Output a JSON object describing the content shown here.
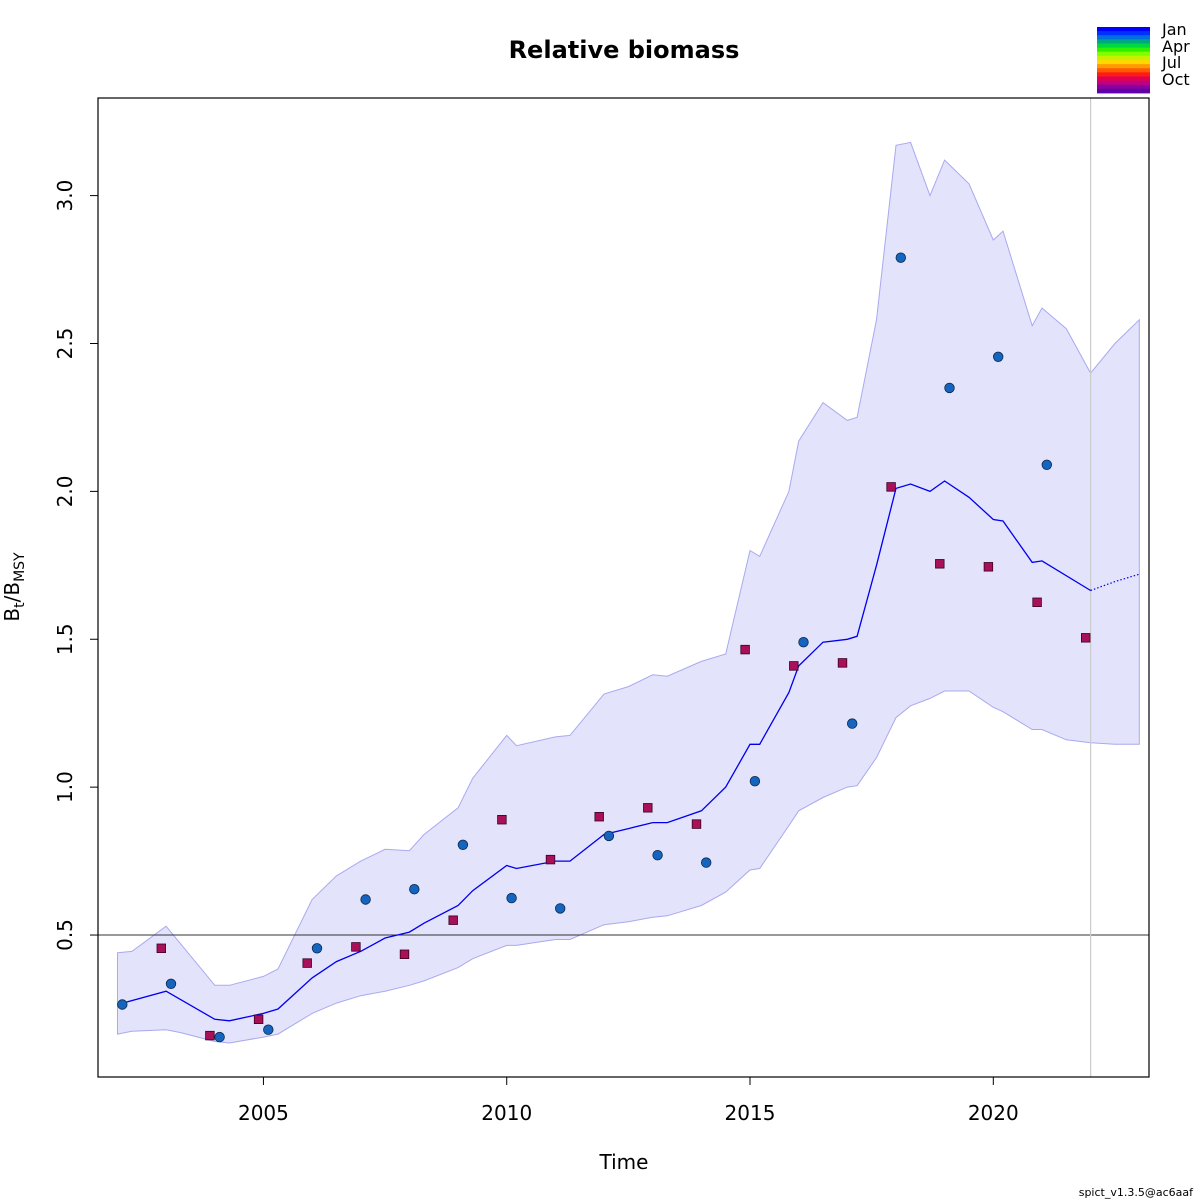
{
  "chart_data": {
    "type": "line",
    "title": "Relative biomass",
    "xlabel": "Time",
    "ylabel_main": "B",
    "ylabel_sub1": "t",
    "ylabel_sep": "/B",
    "ylabel_sub2": "MSY",
    "xlim": [
      2001.6,
      2023.2
    ],
    "ylim": [
      0.02,
      3.33
    ],
    "x_ticks": [
      2005,
      2010,
      2015,
      2020
    ],
    "y_ticks": [
      0.5,
      1.0,
      1.5,
      2.0,
      2.5,
      3.0
    ],
    "y_tick_labels": [
      "0.5",
      "1.0",
      "1.5",
      "2.0",
      "2.5",
      "3.0"
    ],
    "grid": false,
    "reference_line_y": 0.5,
    "forecast_start_x": 2022.0,
    "colors": {
      "line": "#0000ee",
      "ci_fill": "#e3e3fc",
      "ci_edge": "#a9a9f0",
      "circle": "#1565c0",
      "square": "#a8105a",
      "hline": "#333333",
      "vline": "#cccccc"
    },
    "estimate": {
      "x": [
        2002.0,
        2003.0,
        2004.0,
        2004.3,
        2005.0,
        2005.3,
        2006.0,
        2006.5,
        2007.0,
        2007.5,
        2008.0,
        2008.3,
        2009.0,
        2009.3,
        2010.0,
        2010.2,
        2011.0,
        2011.3,
        2012.0,
        2012.5,
        2013.0,
        2013.3,
        2014.0,
        2014.5,
        2015.0,
        2015.2,
        2015.8,
        2016.0,
        2016.5,
        2017.0,
        2017.2,
        2017.6,
        2018.0,
        2018.3,
        2018.7,
        2019.0,
        2019.5,
        2020.0,
        2020.2,
        2020.8,
        2021.0,
        2022.0
      ],
      "y": [
        0.265,
        0.31,
        0.215,
        0.21,
        0.235,
        0.25,
        0.355,
        0.41,
        0.445,
        0.49,
        0.51,
        0.54,
        0.6,
        0.65,
        0.735,
        0.725,
        0.75,
        0.75,
        0.84,
        0.86,
        0.88,
        0.88,
        0.92,
        1.0,
        1.145,
        1.145,
        1.32,
        1.41,
        1.49,
        1.5,
        1.51,
        1.75,
        2.01,
        2.025,
        2.0,
        2.035,
        1.98,
        1.905,
        1.9,
        1.76,
        1.765,
        1.665
      ]
    },
    "forecast": {
      "x": [
        2022.0,
        2022.5,
        2023.0
      ],
      "y": [
        1.665,
        1.695,
        1.72
      ]
    },
    "ci_upper": {
      "x": [
        2002.0,
        2002.3,
        2003.0,
        2003.3,
        2004.0,
        2004.3,
        2005.0,
        2005.3,
        2006.0,
        2006.5,
        2007.0,
        2007.5,
        2008.0,
        2008.3,
        2009.0,
        2009.3,
        2010.0,
        2010.2,
        2011.0,
        2011.3,
        2012.0,
        2012.5,
        2013.0,
        2013.3,
        2014.0,
        2014.5,
        2015.0,
        2015.2,
        2015.8,
        2016.0,
        2016.5,
        2017.0,
        2017.2,
        2017.6,
        2018.0,
        2018.3,
        2018.7,
        2019.0,
        2019.5,
        2020.0,
        2020.2,
        2020.8,
        2021.0,
        2021.5,
        2022.0,
        2022.5,
        2023.0
      ],
      "y": [
        0.44,
        0.445,
        0.53,
        0.47,
        0.33,
        0.33,
        0.36,
        0.385,
        0.62,
        0.7,
        0.75,
        0.79,
        0.785,
        0.84,
        0.93,
        1.03,
        1.175,
        1.14,
        1.17,
        1.175,
        1.315,
        1.34,
        1.38,
        1.375,
        1.425,
        1.45,
        1.8,
        1.78,
        2.0,
        2.17,
        2.3,
        2.24,
        2.25,
        2.58,
        3.17,
        3.18,
        3.0,
        3.12,
        3.04,
        2.85,
        2.88,
        2.56,
        2.62,
        2.55,
        2.4,
        2.5,
        2.58
      ]
    },
    "ci_lower": {
      "x": [
        2002.0,
        2002.3,
        2003.0,
        2003.3,
        2004.0,
        2004.3,
        2005.0,
        2005.3,
        2006.0,
        2006.5,
        2007.0,
        2007.5,
        2008.0,
        2008.3,
        2009.0,
        2009.3,
        2010.0,
        2010.2,
        2011.0,
        2011.3,
        2012.0,
        2012.5,
        2013.0,
        2013.3,
        2014.0,
        2014.5,
        2015.0,
        2015.2,
        2015.8,
        2016.0,
        2016.5,
        2017.0,
        2017.2,
        2017.6,
        2018.0,
        2018.3,
        2018.7,
        2019.0,
        2019.5,
        2020.0,
        2020.2,
        2020.8,
        2021.0,
        2021.5,
        2022.0,
        2022.5,
        2023.0
      ],
      "y": [
        0.165,
        0.175,
        0.18,
        0.17,
        0.14,
        0.135,
        0.155,
        0.165,
        0.235,
        0.27,
        0.295,
        0.31,
        0.33,
        0.345,
        0.39,
        0.42,
        0.465,
        0.465,
        0.485,
        0.485,
        0.535,
        0.545,
        0.56,
        0.565,
        0.6,
        0.645,
        0.72,
        0.725,
        0.87,
        0.92,
        0.965,
        1.0,
        1.005,
        1.1,
        1.235,
        1.275,
        1.3,
        1.325,
        1.325,
        1.27,
        1.255,
        1.195,
        1.195,
        1.16,
        1.15,
        1.145,
        1.145
      ]
    },
    "index1_circles": {
      "x": [
        2002.1,
        2003.1,
        2004.1,
        2005.1,
        2006.1,
        2007.1,
        2008.1,
        2009.1,
        2010.1,
        2011.1,
        2012.1,
        2013.1,
        2014.1,
        2015.1,
        2016.1,
        2017.1,
        2018.1,
        2019.1,
        2020.1,
        2021.1
      ],
      "y": [
        0.265,
        0.335,
        0.155,
        0.18,
        0.455,
        0.62,
        0.655,
        0.805,
        0.625,
        0.59,
        0.835,
        0.77,
        0.745,
        1.02,
        1.49,
        1.215,
        2.79,
        2.35,
        2.455,
        2.09
      ]
    },
    "index2_squares": {
      "x": [
        2002.9,
        2003.9,
        2004.9,
        2005.9,
        2006.9,
        2007.9,
        2008.9,
        2009.9,
        2010.9,
        2011.9,
        2012.9,
        2013.9,
        2014.9,
        2015.9,
        2016.9,
        2017.9,
        2018.9,
        2019.9,
        2020.9,
        2021.9
      ],
      "y": [
        0.455,
        0.16,
        0.215,
        0.405,
        0.46,
        0.435,
        0.55,
        0.89,
        0.755,
        0.9,
        0.93,
        0.875,
        1.465,
        1.41,
        1.42,
        2.015,
        1.755,
        1.745,
        1.625,
        1.505
      ]
    },
    "legend": {
      "labels": [
        "Jan",
        "Apr",
        "Jul",
        "Oct"
      ],
      "placement": "top-right",
      "colors": [
        "#0000ff",
        "#0030ff",
        "#0070e0",
        "#00a880",
        "#00d840",
        "#30f000",
        "#80ff00",
        "#c8f000",
        "#ffd800",
        "#ff9a00",
        "#ff5a00",
        "#ff1a1a",
        "#e00050",
        "#c00080",
        "#8800a0",
        "#6000a8"
      ]
    }
  },
  "footer": {
    "version": "spict_v1.3.5@ac6aaf"
  }
}
